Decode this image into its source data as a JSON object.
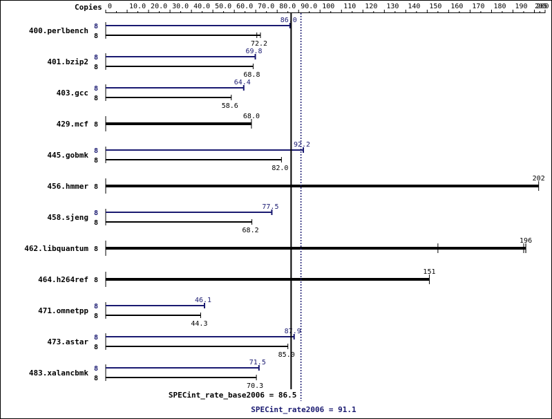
{
  "chart_data": {
    "type": "bar",
    "orientation": "horizontal",
    "axis_header": "Copies",
    "x_ticks": [
      "0",
      "10.0",
      "20.0",
      "30.0",
      "40.0",
      "50.0",
      "60.0",
      "70.0",
      "80.0",
      "90.0",
      "100",
      "110",
      "120",
      "130",
      "140",
      "150",
      "160",
      "170",
      "180",
      "190",
      "200",
      "205"
    ],
    "xlim": [
      0,
      205
    ],
    "grid": false,
    "colors": {
      "peak": "#191970",
      "base": "#000000"
    },
    "benchmarks": [
      {
        "name": "400.perlbench",
        "peak": 86.0,
        "base": 72.2,
        "peak_copies": "8",
        "base_copies": "8",
        "peak_label": "86.0",
        "base_label": "72.2",
        "base_runs": [
          70.5,
          72.2
        ]
      },
      {
        "name": "401.bzip2",
        "peak": 69.8,
        "base": 68.8,
        "peak_copies": "8",
        "base_copies": "8",
        "peak_label": "69.8",
        "base_label": "68.8",
        "base_runs": [
          68.8
        ]
      },
      {
        "name": "403.gcc",
        "peak": 64.4,
        "base": 58.6,
        "peak_copies": "8",
        "base_copies": "8",
        "peak_label": "64.4",
        "base_label": "58.6",
        "base_runs": [
          58.6
        ]
      },
      {
        "name": "429.mcf",
        "single": 68.0,
        "copies": "8",
        "label": "68.0"
      },
      {
        "name": "445.gobmk",
        "peak": 92.2,
        "base": 82.0,
        "peak_copies": "8",
        "base_copies": "8",
        "peak_label": "92.2",
        "base_label": "82.0",
        "base_runs": [
          82.0
        ]
      },
      {
        "name": "456.hmmer",
        "single": 202,
        "copies": "8",
        "label": "202"
      },
      {
        "name": "458.sjeng",
        "peak": 77.5,
        "base": 68.2,
        "peak_copies": "8",
        "base_copies": "8",
        "peak_label": "77.5",
        "base_label": "68.2",
        "base_runs": [
          68.2
        ]
      },
      {
        "name": "462.libquantum",
        "single": 196,
        "copies": "8",
        "label": "196",
        "runs": [
          155,
          195,
          196
        ]
      },
      {
        "name": "464.h264ref",
        "single": 151,
        "copies": "8",
        "label": "151"
      },
      {
        "name": "471.omnetpp",
        "peak": 46.1,
        "base": 44.3,
        "peak_copies": "8",
        "base_copies": "8",
        "peak_label": "46.1",
        "base_label": "44.3",
        "base_runs": [
          44.3
        ]
      },
      {
        "name": "473.astar",
        "peak": 87.9,
        "base": 85.0,
        "peak_copies": "8",
        "base_copies": "8",
        "peak_label": "87.9",
        "base_label": "85.0",
        "base_runs": [
          85.0
        ]
      },
      {
        "name": "483.xalancbmk",
        "peak": 71.5,
        "base": 70.3,
        "peak_copies": "8",
        "base_copies": "8",
        "peak_label": "71.5",
        "base_label": "70.3",
        "base_runs": [
          70.3
        ]
      }
    ],
    "reference_lines": [
      {
        "label": "SPECint_rate_base2006 = 86.5",
        "value": 86.5,
        "style": "solid"
      },
      {
        "label": "SPECint_rate2006 = 91.1",
        "value": 91.1,
        "style": "dotted"
      }
    ]
  }
}
